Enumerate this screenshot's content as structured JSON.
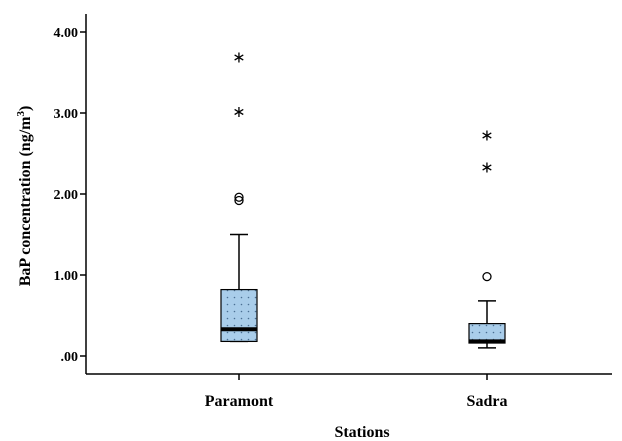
{
  "chart_data": {
    "type": "box",
    "title": "",
    "xlabel": "Stations",
    "ylabel": {
      "main": "BaP concentration (ng/m",
      "sup": "3",
      "end": ")"
    },
    "ylim": [
      -0.2,
      4.2
    ],
    "yticks": [
      ".00",
      "1.00",
      "2.00",
      "3.00",
      "4.00"
    ],
    "ytick_values": [
      0,
      1,
      2,
      3,
      4
    ],
    "grid": false,
    "legend": "none",
    "box_fill": "#a9cdea",
    "box_dot_color": "#4a6f93",
    "categories": [
      "Paramont",
      "Sadra"
    ],
    "boxes": [
      {
        "name": "Paramont",
        "whisker_low": 0.18,
        "q1": 0.18,
        "median": 0.33,
        "q3": 0.82,
        "whisker_high": 1.5,
        "outliers": [
          1.92,
          1.96
        ],
        "extremes": [
          3.04,
          3.71
        ]
      },
      {
        "name": "Sadra",
        "whisker_low": 0.1,
        "q1": 0.16,
        "median": 0.18,
        "q3": 0.4,
        "whisker_high": 0.68,
        "outliers": [
          0.98
        ],
        "extremes": [
          2.35,
          2.75
        ]
      }
    ]
  }
}
